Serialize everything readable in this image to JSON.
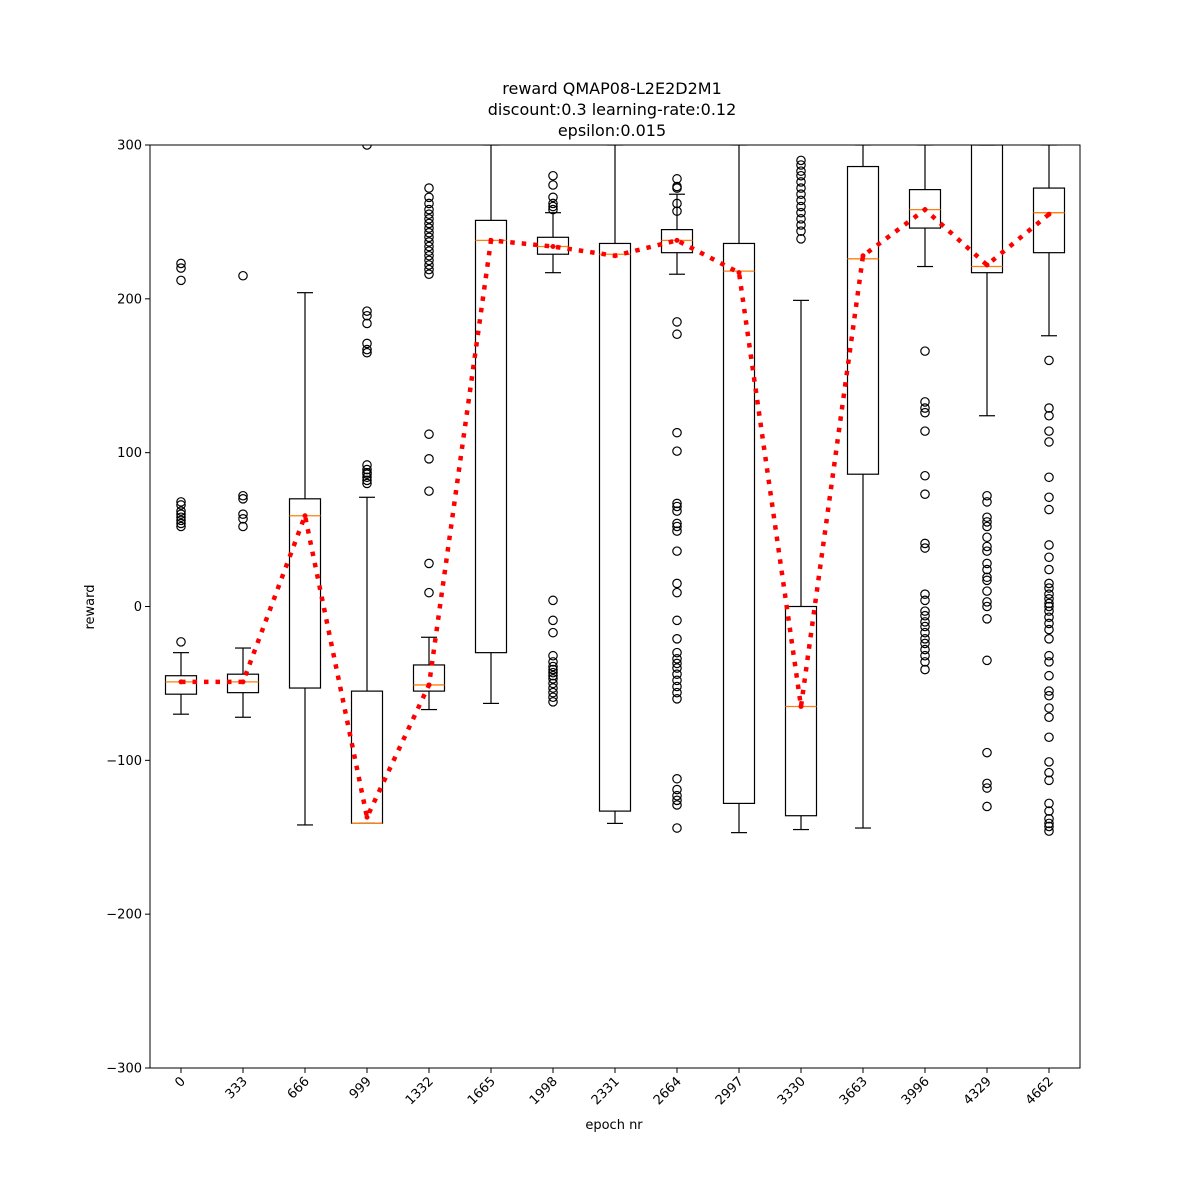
{
  "chart_data": {
    "type": "box",
    "title_lines": [
      "reward QMAP08-L2E2D2M1",
      "discount:0.3 learning-rate:0.12",
      "epsilon:0.015"
    ],
    "xlabel": "epoch nr",
    "ylabel": "reward",
    "ylim": [
      -300,
      300
    ],
    "yticks": [
      -300,
      -200,
      -100,
      0,
      100,
      200,
      300
    ],
    "y_tick_labels": [
      "−300",
      "−200",
      "−100",
      "0",
      "100",
      "200",
      "300"
    ],
    "categories": [
      "0",
      "333",
      "666",
      "999",
      "1332",
      "1665",
      "1998",
      "2331",
      "2664",
      "2997",
      "3330",
      "3663",
      "3996",
      "4329",
      "4662"
    ],
    "boxes": [
      {
        "epoch": "0",
        "q1": -57,
        "median": -49,
        "q3": -45,
        "whislo": -70,
        "whishi": -30,
        "fliers": [
          223,
          220,
          212,
          68,
          66,
          62,
          60,
          58,
          56,
          54,
          52,
          -23
        ]
      },
      {
        "epoch": "333",
        "q1": -56,
        "median": -49,
        "q3": -44,
        "whislo": -72,
        "whishi": -27,
        "fliers": [
          215,
          72,
          70,
          60,
          57,
          52
        ]
      },
      {
        "epoch": "666",
        "q1": -53,
        "median": 59,
        "q3": 70,
        "whislo": -142,
        "whishi": 204,
        "fliers": []
      },
      {
        "epoch": "999",
        "q1": -141,
        "median": -141,
        "q3": -55,
        "whislo": -141,
        "whishi": 71,
        "fliers": [
          300,
          192,
          189,
          184,
          171,
          167,
          165,
          92,
          89,
          87,
          86,
          84,
          82,
          80
        ]
      },
      {
        "epoch": "1332",
        "q1": -55,
        "median": -51,
        "q3": -38,
        "whislo": -67,
        "whishi": -20,
        "fliers": [
          272,
          266,
          262,
          258,
          255,
          252,
          249,
          246,
          243,
          240,
          237,
          234,
          231,
          228,
          225,
          222,
          219,
          216,
          112,
          96,
          75,
          28,
          9
        ]
      },
      {
        "epoch": "1665",
        "q1": -30,
        "median": 238,
        "q3": 251,
        "whislo": -63,
        "whishi": 300,
        "fliers": []
      },
      {
        "epoch": "1998",
        "q1": 229,
        "median": 234,
        "q3": 240,
        "whislo": 217,
        "whishi": 256,
        "fliers": [
          280,
          274,
          266,
          262,
          260,
          258,
          4,
          -9,
          -17,
          -32,
          -36,
          -39,
          -41,
          -43,
          -45,
          -47,
          -50,
          -53,
          -56,
          -59,
          -62
        ]
      },
      {
        "epoch": "2331",
        "q1": -133,
        "median": 229,
        "q3": 236,
        "whislo": -141,
        "whishi": 300,
        "fliers": []
      },
      {
        "epoch": "2664",
        "q1": 230,
        "median": 238,
        "q3": 245,
        "whislo": 216,
        "whishi": 268,
        "fliers": [
          278,
          273,
          272,
          262,
          257,
          185,
          177,
          113,
          101,
          67,
          65,
          62,
          54,
          52,
          49,
          36,
          15,
          9,
          -9,
          -21,
          -30,
          -34,
          -37,
          -40,
          -44,
          -48,
          -52,
          -56,
          -60,
          -112,
          -119,
          -123,
          -126,
          -129,
          -144
        ]
      },
      {
        "epoch": "2997",
        "q1": -128,
        "median": 218,
        "q3": 236,
        "whislo": -147,
        "whishi": 300,
        "fliers": []
      },
      {
        "epoch": "3330",
        "q1": -136,
        "median": -65,
        "q3": 0,
        "whislo": -145,
        "whishi": 199,
        "fliers": [
          290,
          287,
          283,
          280,
          276,
          272,
          268,
          264,
          260,
          256,
          252,
          248,
          244,
          239
        ]
      },
      {
        "epoch": "3663",
        "q1": 86,
        "median": 226,
        "q3": 286,
        "whislo": -144,
        "whishi": 300,
        "fliers": []
      },
      {
        "epoch": "3996",
        "q1": 246,
        "median": 258,
        "q3": 271,
        "whislo": 221,
        "whishi": 300,
        "fliers": [
          166,
          133,
          129,
          126,
          114,
          85,
          73,
          41,
          38,
          8,
          4,
          -3,
          -6,
          -10,
          -13,
          -17,
          -21,
          -24,
          -28,
          -32,
          -36,
          -41
        ]
      },
      {
        "epoch": "4329",
        "q1": 217,
        "median": 221,
        "q3": 300,
        "whislo": 124,
        "whishi": 300,
        "fliers": [
          72,
          68,
          58,
          55,
          52,
          45,
          39,
          36,
          28,
          24,
          19,
          17,
          10,
          3,
          0,
          -8,
          -35,
          -95,
          -115,
          -118,
          -130
        ]
      },
      {
        "epoch": "4662",
        "q1": 230,
        "median": 256,
        "q3": 272,
        "whislo": 176,
        "whishi": 300,
        "fliers": [
          160,
          129,
          124,
          114,
          107,
          84,
          71,
          63,
          40,
          32,
          24,
          15,
          12,
          8,
          5,
          2,
          0,
          -3,
          -7,
          -11,
          -15,
          -21,
          -32,
          -36,
          -45,
          -55,
          -58,
          -66,
          -72,
          -85,
          -101,
          -108,
          -113,
          -128,
          -133,
          -138,
          -141,
          -143,
          -146
        ]
      }
    ],
    "mean_line": {
      "values": [
        -49,
        -49,
        59,
        -137,
        -51,
        238,
        234,
        228,
        238,
        217,
        -65,
        228,
        258,
        222,
        255
      ],
      "style": "dotted",
      "color": "#ff0000"
    },
    "colors": {
      "box": "#000000",
      "median": "#ff7f0e",
      "mean": "#ff0000",
      "flier": "#000000"
    }
  }
}
